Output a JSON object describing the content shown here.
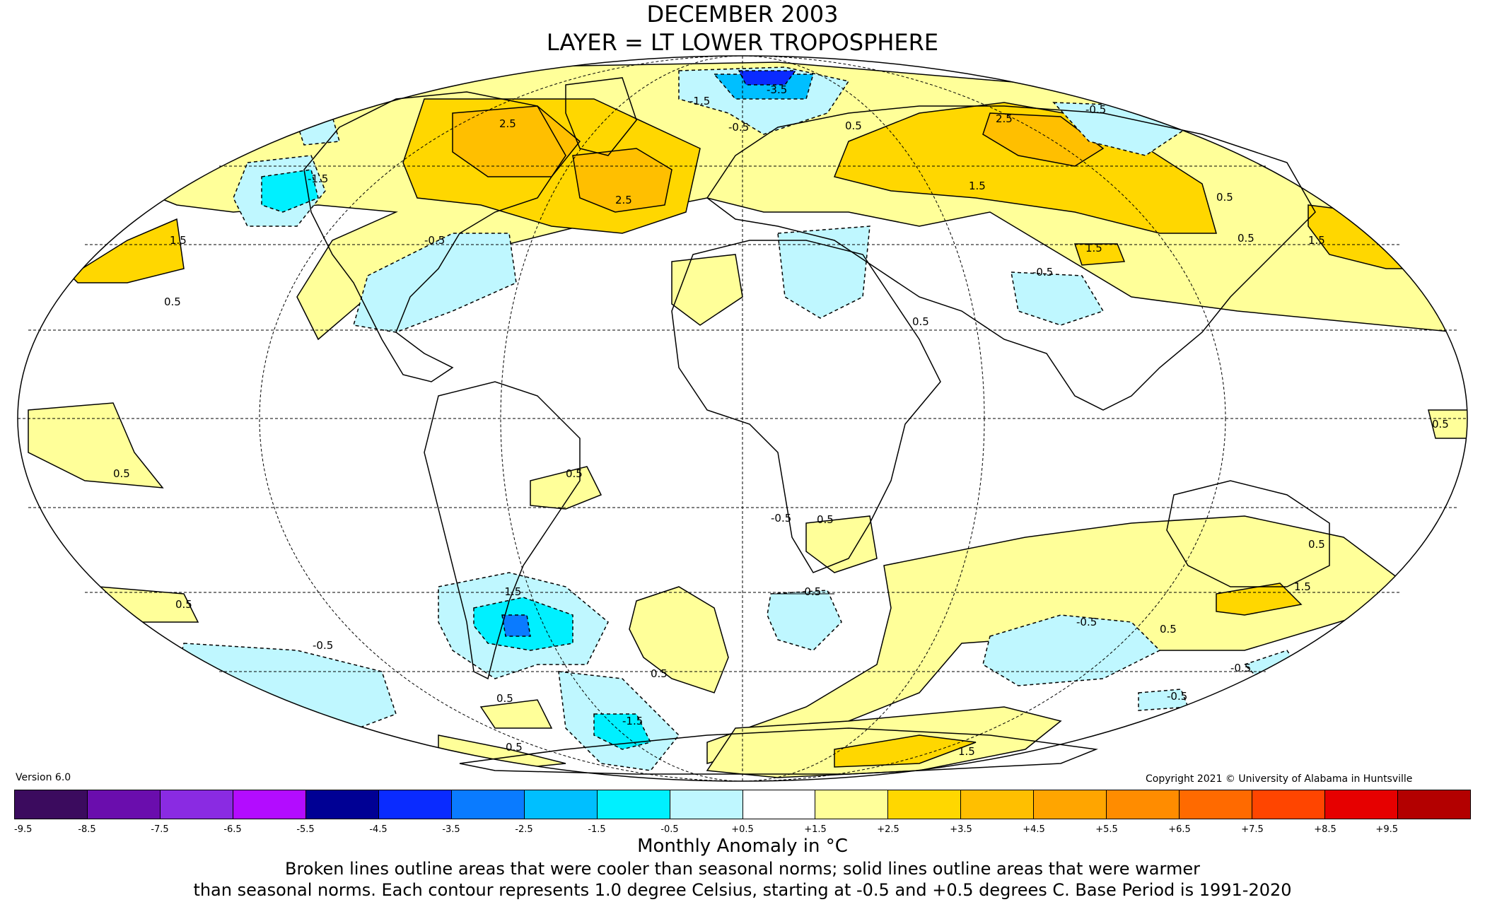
{
  "header": {
    "title_line1": "DECEMBER 2003",
    "title_line2": "LAYER = LT LOWER TROPOSPHERE"
  },
  "footer": {
    "version": "Version 6.0",
    "copyright": "Copyright 2021 © University of Alabama in Huntsville",
    "unit_label": "Monthly Anomaly in °C",
    "note_line1": "Broken lines outline areas that were cooler than seasonal norms; solid lines outline areas that were warmer",
    "note_line2": "than seasonal norms. Each contour represents 1.0 degree Celsius, starting at -0.5 and +0.5 degrees C. Base Period is 1991-2020"
  },
  "colorbar": {
    "ticks": [
      "-9.5",
      "-8.5",
      "-7.5",
      "-6.5",
      "-5.5",
      "-4.5",
      "-3.5",
      "-2.5",
      "-1.5",
      "-0.5",
      "+0.5",
      "+1.5",
      "+2.5",
      "+3.5",
      "+4.5",
      "+5.5",
      "+6.5",
      "+7.5",
      "+8.5",
      "+9.5"
    ],
    "colors": [
      "#3b0b5e",
      "#6a0dad",
      "#8a2be2",
      "#b30cff",
      "#000094",
      "#0a2bff",
      "#0a7bff",
      "#00bfff",
      "#00f0ff",
      "#bff7ff",
      "#ffffff",
      "#ffff99",
      "#ffd700",
      "#ffbf00",
      "#ffa500",
      "#ff8c00",
      "#ff6a00",
      "#ff4500",
      "#e60000",
      "#b30000"
    ]
  },
  "map": {
    "projection": "Mollweide (centered on 0°)",
    "contour_labels": [
      {
        "text": "2.5"
      },
      {
        "text": "-3.5"
      },
      {
        "text": "-1.5"
      },
      {
        "text": "-0.5"
      },
      {
        "text": "0.5"
      },
      {
        "text": "2.5"
      },
      {
        "text": "2.5"
      },
      {
        "text": "-1.5"
      },
      {
        "text": "1.5"
      },
      {
        "text": "1.5"
      },
      {
        "text": "0.5"
      },
      {
        "text": "0.5"
      },
      {
        "text": "1.5"
      },
      {
        "text": "-0.5"
      },
      {
        "text": "-0.5"
      },
      {
        "text": "0.5"
      },
      {
        "text": "0.5"
      },
      {
        "text": "-0.5"
      },
      {
        "text": "1.5"
      },
      {
        "text": "0.5"
      },
      {
        "text": "-0.5"
      },
      {
        "text": "0.5"
      },
      {
        "text": "0.5"
      },
      {
        "text": "0.5"
      },
      {
        "text": "-0.5"
      },
      {
        "text": "-1.5"
      },
      {
        "text": "0.5"
      },
      {
        "text": "-0.5"
      },
      {
        "text": "0.5"
      },
      {
        "text": "-0.5"
      },
      {
        "text": "0.5"
      },
      {
        "text": "0.5"
      },
      {
        "text": "1.5"
      },
      {
        "text": "-0.5"
      },
      {
        "text": "0.5"
      },
      {
        "text": "-0.5"
      },
      {
        "text": "-1.5"
      },
      {
        "text": "1.5"
      },
      {
        "text": "0.5"
      }
    ]
  }
}
